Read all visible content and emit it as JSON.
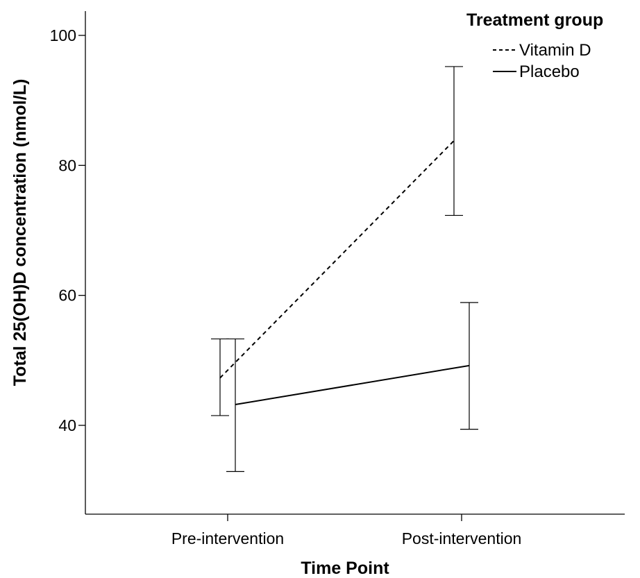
{
  "chart_data": {
    "type": "line",
    "xlabel": "Time Point",
    "ylabel": "Total 25(OH)D concentration (nmol/L)",
    "categories": [
      "Pre-intervention",
      "Post-intervention"
    ],
    "y_ticks": [
      40,
      60,
      80,
      100
    ],
    "ylim": [
      27,
      104
    ],
    "grid": false,
    "legend": {
      "title": "Treatment group",
      "position": "top-right"
    },
    "series": [
      {
        "name": "Vitamin D",
        "style": "dashed",
        "color": "#000000",
        "values": [
          47.3,
          83.8
        ],
        "ci_low": [
          41.5,
          72.3
        ],
        "ci_high": [
          53.3,
          95.2
        ]
      },
      {
        "name": "Placebo",
        "style": "solid",
        "color": "#000000",
        "values": [
          43.2,
          49.2
        ],
        "ci_low": [
          32.9,
          39.4
        ],
        "ci_high": [
          53.3,
          58.9
        ]
      }
    ]
  }
}
